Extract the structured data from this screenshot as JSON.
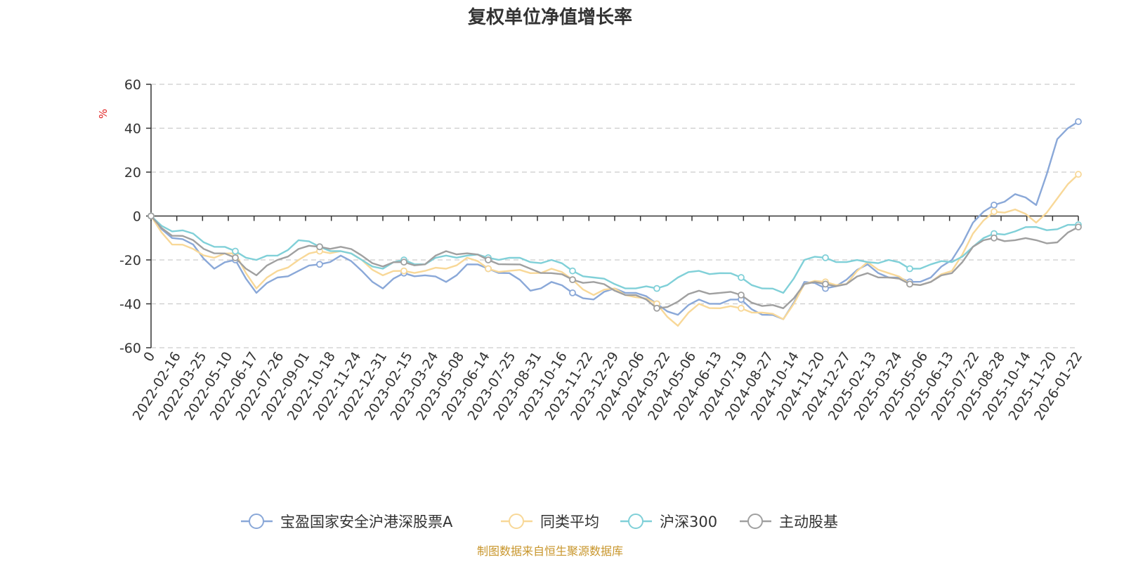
{
  "chart_data": {
    "type": "line",
    "title": "复权单位净值增长率",
    "ylabel": "%",
    "ylim": [
      -60,
      60
    ],
    "yticks": [
      60,
      40,
      20,
      0,
      -20,
      -40,
      -60
    ],
    "x_tick_labels": [
      "0",
      "2022-02-16",
      "2022-03-25",
      "2022-05-10",
      "2022-06-17",
      "2022-07-26",
      "2022-09-01",
      "2022-10-18",
      "2022-11-24",
      "2022-12-31",
      "2023-02-15",
      "2023-03-24",
      "2023-05-08",
      "2023-06-14",
      "2023-07-25",
      "2023-08-31",
      "2023-10-16",
      "2023-11-22",
      "2023-12-29",
      "2024-02-06",
      "2024-03-22",
      "2024-05-06",
      "2024-06-13",
      "2024-07-19",
      "2024-08-27",
      "2024-10-14",
      "2024-11-20",
      "2024-12-27",
      "2025-02-13",
      "2025-03-24",
      "2025-05-06",
      "2025-06-13",
      "2025-07-22",
      "2025-08-28",
      "2025-10-14",
      "2025-11-20",
      "2026-01-22"
    ],
    "grid": "horizontal dashed",
    "legend_position": "bottom",
    "source": "制图数据来自恒生聚源数据库",
    "series": [
      {
        "name": "宝盈国家安全沪港深股票A",
        "color": "#8aa8d8",
        "values": [
          0,
          -10,
          -13,
          -24,
          -20,
          -35,
          -28,
          -25,
          -22,
          -18,
          -25,
          -33,
          -26,
          -27,
          -30,
          -22,
          -24,
          -26,
          -34,
          -30,
          -35,
          -38,
          -33,
          -35,
          -40,
          -45,
          -38,
          -40,
          -38,
          -45,
          -47,
          -30,
          -33,
          -29,
          -22,
          -28,
          -30,
          -28,
          -20,
          -3,
          5,
          10,
          5,
          35,
          43
        ]
      },
      {
        "name": "同类平均",
        "color": "#f8d898",
        "values": [
          0,
          -13,
          -15,
          -19,
          -17,
          -33,
          -25,
          -20,
          -16,
          -16,
          -20,
          -27,
          -25,
          -25,
          -24,
          -19,
          -24,
          -25,
          -26,
          -24,
          -29,
          -36,
          -33,
          -37,
          -40,
          -50,
          -40,
          -42,
          -42,
          -44,
          -47,
          -31,
          -30,
          -31,
          -21,
          -26,
          -31,
          -30,
          -25,
          -8,
          2,
          3,
          -3,
          8,
          19
        ]
      },
      {
        "name": "沪深300",
        "color": "#80d0d8",
        "values": [
          0,
          -7,
          -8,
          -14,
          -16,
          -20,
          -18,
          -11,
          -14,
          -16,
          -20,
          -24,
          -20,
          -22,
          -18,
          -18,
          -19,
          -19,
          -21,
          -20,
          -25,
          -28,
          -31,
          -33,
          -33,
          -28,
          -25,
          -26,
          -28,
          -33,
          -35,
          -20,
          -19,
          -21,
          -21,
          -20,
          -24,
          -22,
          -21,
          -14,
          -8,
          -7,
          -5,
          -6,
          -4
        ]
      },
      {
        "name": "主动股基",
        "color": "#a0a0a0",
        "values": [
          0,
          -9,
          -11,
          -17,
          -19,
          -27,
          -20,
          -15,
          -14,
          -14,
          -18,
          -23,
          -21,
          -22,
          -16,
          -17,
          -20,
          -22,
          -24,
          -26,
          -29,
          -30,
          -34,
          -36,
          -42,
          -39,
          -34,
          -35,
          -36,
          -41,
          -42,
          -31,
          -31,
          -31,
          -26,
          -28,
          -31,
          -30,
          -26,
          -14,
          -10,
          -11,
          -11,
          -12,
          -5
        ]
      }
    ]
  }
}
